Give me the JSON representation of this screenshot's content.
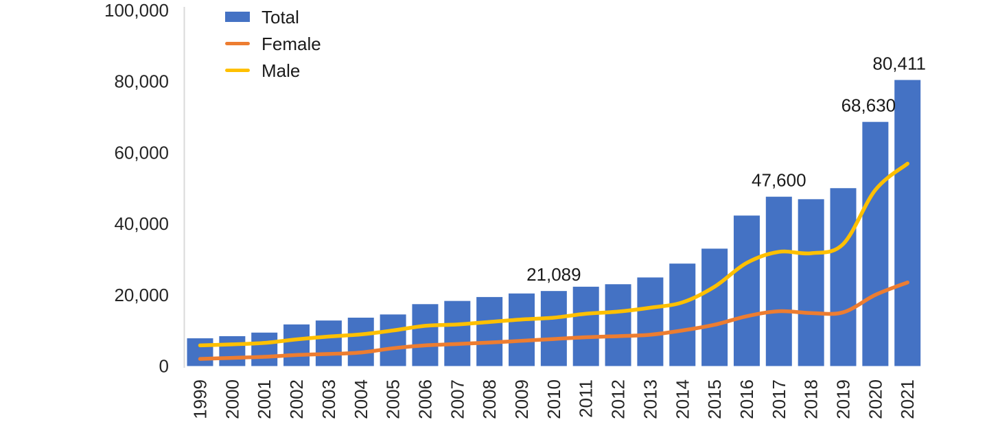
{
  "chart_data": {
    "type": "bar",
    "title": "",
    "xlabel": "",
    "ylabel": "",
    "grid": false,
    "legend_position": "top-left-inside",
    "categories": [
      "1999",
      "2000",
      "2001",
      "2002",
      "2003",
      "2004",
      "2005",
      "2006",
      "2007",
      "2008",
      "2009",
      "2010",
      "2011",
      "2012",
      "2013",
      "2014",
      "2015",
      "2016",
      "2017",
      "2018",
      "2019",
      "2020",
      "2021"
    ],
    "series": [
      {
        "name": "Total",
        "kind": "bar",
        "color": "#4472C4",
        "values": [
          7800,
          8400,
          9400,
          11700,
          12800,
          13600,
          14500,
          17400,
          18300,
          19400,
          20400,
          21089,
          22300,
          23000,
          24900,
          28800,
          33000,
          42300,
          47600,
          46900,
          50000,
          68630,
          80411
        ]
      },
      {
        "name": "Female",
        "kind": "line",
        "color": "#ED7D31",
        "values": [
          2000,
          2300,
          2600,
          3100,
          3400,
          3800,
          5000,
          5800,
          6200,
          6600,
          7100,
          7600,
          8100,
          8400,
          8800,
          10000,
          11600,
          14000,
          15400,
          14900,
          15100,
          20000,
          23500
        ]
      },
      {
        "name": "Male",
        "kind": "line",
        "color": "#FFC000",
        "values": [
          5800,
          6100,
          6500,
          7500,
          8300,
          8900,
          10000,
          11300,
          11700,
          12400,
          13100,
          13600,
          14700,
          15300,
          16400,
          17900,
          22300,
          29000,
          32100,
          31700,
          34300,
          49500,
          56900
        ]
      }
    ],
    "y_axis": {
      "min": 0,
      "max": 100000,
      "ticks": [
        {
          "value": 0,
          "label": "0"
        },
        {
          "value": 20000,
          "label": "20,000"
        },
        {
          "value": 40000,
          "label": "40,000"
        },
        {
          "value": 60000,
          "label": "60,000"
        },
        {
          "value": 80000,
          "label": "80,000"
        },
        {
          "value": 100000,
          "label": "100,000"
        }
      ]
    },
    "annotations": [
      {
        "series": "Total",
        "category": "2010",
        "text": "21,089",
        "dx": 0
      },
      {
        "series": "Total",
        "category": "2017",
        "text": "47,600",
        "dx": 0
      },
      {
        "series": "Total",
        "category": "2020",
        "text": "68,630",
        "dx": -10
      },
      {
        "series": "Total",
        "category": "2021",
        "text": "80,411",
        "dx": -12
      }
    ],
    "axis_line_color": "#D9D9D9",
    "text_color": "#262626"
  }
}
